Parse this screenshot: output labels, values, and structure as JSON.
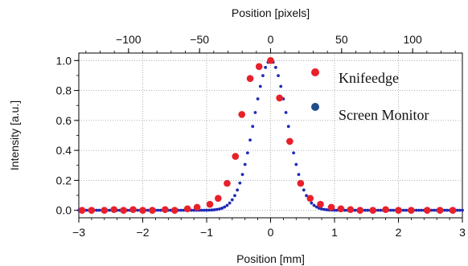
{
  "chart_data": {
    "type": "scatter",
    "title": "",
    "xlabel": "Position [mm]",
    "x2label": "Position [pixels]",
    "ylabel": "Intensity [a.u.]",
    "xlim": [
      -3,
      3
    ],
    "x2lim": [
      -135,
      135
    ],
    "ylim": [
      -0.05,
      1.05
    ],
    "grid": true,
    "legend_position": "top-right",
    "xticks": [
      -3,
      -2,
      -1,
      0,
      1,
      2,
      3
    ],
    "x2ticks": [
      -100,
      -50,
      0,
      50,
      100
    ],
    "yticks": [
      0.0,
      0.2,
      0.4,
      0.6,
      0.8,
      1.0
    ],
    "xtick_labels": [
      "−3",
      "−2",
      "−1",
      "0",
      "1",
      "2",
      "3"
    ],
    "x2tick_labels": [
      "−100",
      "−50",
      "0",
      "50",
      "100"
    ],
    "ytick_labels": [
      "0.0",
      "0.2",
      "0.4",
      "0.6",
      "0.8",
      "1.0"
    ],
    "series": [
      {
        "name": "Knifeedge",
        "color": "#e8202a",
        "marker": "large-dot",
        "x": [
          -2.95,
          -2.8,
          -2.6,
          -2.45,
          -2.3,
          -2.15,
          -2.0,
          -1.85,
          -1.65,
          -1.5,
          -1.3,
          -1.15,
          -0.95,
          -0.82,
          -0.68,
          -0.55,
          -0.45,
          -0.32,
          -0.18,
          0.0,
          0.14,
          0.3,
          0.47,
          0.62,
          0.78,
          0.95,
          1.1,
          1.25,
          1.4,
          1.6,
          1.8,
          2.0,
          2.2,
          2.45,
          2.65,
          2.85
        ],
        "y": [
          0.0,
          0.0,
          0.0,
          0.005,
          0.0,
          0.005,
          0.0,
          0.0,
          0.005,
          0.0,
          0.01,
          0.02,
          0.04,
          0.08,
          0.18,
          0.36,
          0.64,
          0.88,
          0.96,
          1.0,
          0.75,
          0.46,
          0.18,
          0.08,
          0.04,
          0.02,
          0.01,
          0.005,
          0.0,
          0.0,
          0.005,
          0.0,
          0.0,
          0.0,
          0.0,
          0.0
        ]
      },
      {
        "name": "Screen Monitor",
        "color": "#1e2bb5",
        "legend_color": "#1f4e8a",
        "marker": "small-dot",
        "gaussian": {
          "center": 0.0,
          "sigma": 0.26,
          "amplitude": 1.0,
          "x_start": -3.0,
          "x_end": 3.0,
          "step": 0.04
        }
      }
    ]
  }
}
